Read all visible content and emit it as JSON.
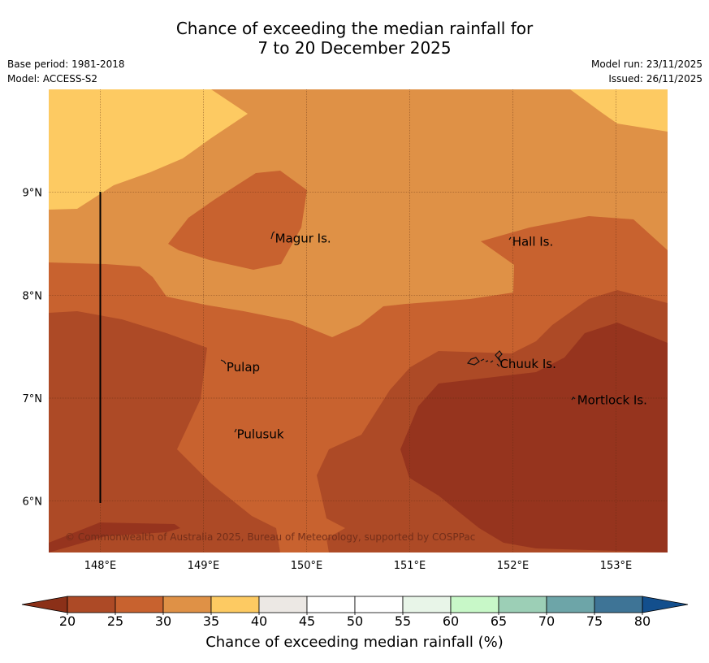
{
  "title": {
    "line1": "Chance of exceeding the median rainfall for",
    "line2": "7 to 20 December 2025"
  },
  "meta": {
    "base_period": "Base period: 1981-2018",
    "model": "Model: ACCESS-S2",
    "model_run": "Model run: 23/11/2025",
    "issued": "Issued: 26/11/2025"
  },
  "map": {
    "lon_range": [
      147.5,
      153.5
    ],
    "lat_range": [
      5.5,
      10.0
    ],
    "lon_ticks": [
      "148°E",
      "149°E",
      "150°E",
      "151°E",
      "152°E",
      "153°E"
    ],
    "lat_ticks": [
      "9°N",
      "8°N",
      "7°N",
      "6°N"
    ],
    "places": [
      {
        "name": "Magur Is.",
        "lon": 149.67,
        "lat": 8.55
      },
      {
        "name": "Hall Is.",
        "lon": 151.97,
        "lat": 8.52
      },
      {
        "name": "Pulap",
        "lon": 149.2,
        "lat": 7.3
      },
      {
        "name": "Chuuk Is.",
        "lon": 151.85,
        "lat": 7.33
      },
      {
        "name": "Mortlock Is.",
        "lon": 152.6,
        "lat": 6.98
      },
      {
        "name": "Pulusuk",
        "lon": 149.3,
        "lat": 6.65
      }
    ],
    "copyright": "© Commonwealth of Australia 2025, Bureau of Meteorology, supported by COSPPac"
  },
  "colorbar": {
    "ticks": [
      "20",
      "25",
      "30",
      "35",
      "40",
      "45",
      "50",
      "55",
      "60",
      "65",
      "70",
      "75",
      "80"
    ],
    "colors": [
      "#ad4a26",
      "#c8622f",
      "#df9146",
      "#fdca62",
      "#ece8e4",
      "#ffffff",
      "#ffffff",
      "#e8f5e8",
      "#c8f8c8",
      "#9ccfb6",
      "#6da5a8",
      "#3e7496"
    ],
    "under_color": "#8b3018",
    "over_color": "#134f8d",
    "label": "Chance of exceeding median rainfall (%)"
  }
}
